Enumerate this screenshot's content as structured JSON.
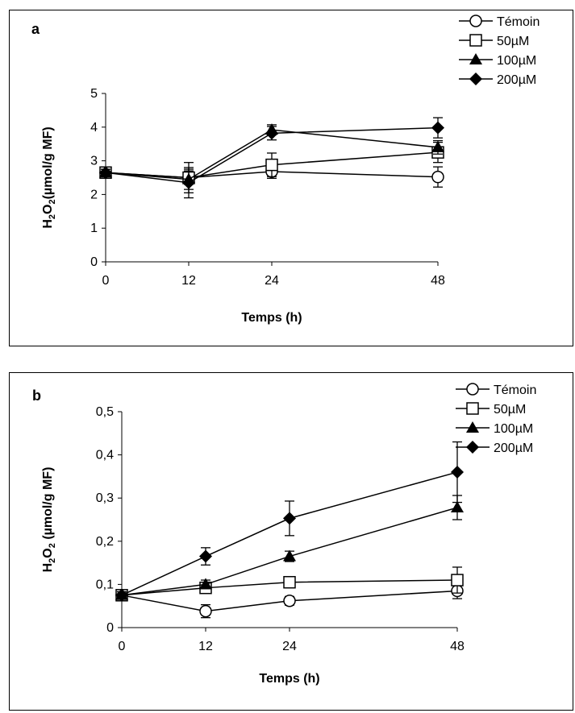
{
  "chart_data": [
    {
      "type": "line",
      "panel_label": "a",
      "xlabel": "Temps (h)",
      "ylabel": "H2O2(µmol/g MF)",
      "ylabel_parts": {
        "main": "H",
        "sub1": "2",
        "mid": "O",
        "sub2": "2",
        "rest": "(µmol/g MF)"
      },
      "x": [
        0,
        12,
        24,
        48
      ],
      "x_tick_labels": [
        "0",
        "12",
        "24",
        "48"
      ],
      "ylim": [
        0,
        5
      ],
      "y_ticks": [
        0,
        1,
        2,
        3,
        4,
        5
      ],
      "y_tick_labels": [
        "0",
        "1",
        "2",
        "3",
        "4",
        "5"
      ],
      "legend_position": "top-right",
      "series": [
        {
          "name": "Témoin",
          "marker": "circle-open",
          "values": [
            2.65,
            2.5,
            2.68,
            2.52
          ],
          "errors": [
            0.1,
            0.2,
            0.2,
            0.3
          ]
        },
        {
          "name": "50µM",
          "marker": "square-open",
          "values": [
            2.65,
            2.5,
            2.88,
            3.25
          ],
          "errors": [
            0.1,
            0.45,
            0.35,
            0.3
          ]
        },
        {
          "name": "100µM",
          "marker": "triangle-filled",
          "values": [
            2.65,
            2.45,
            3.92,
            3.4
          ],
          "errors": [
            0.1,
            0.3,
            0.15,
            0.2
          ]
        },
        {
          "name": "200µM",
          "marker": "diamond-filled",
          "values": [
            2.65,
            2.35,
            3.82,
            3.98
          ],
          "errors": [
            0.1,
            0.45,
            0.2,
            0.3
          ]
        }
      ]
    },
    {
      "type": "line",
      "panel_label": "b",
      "xlabel": "Temps (h)",
      "ylabel": "H2O2 (µmol/g MF)",
      "ylabel_parts": {
        "main": "H",
        "sub1": "2",
        "mid": "O",
        "sub2": "2",
        "rest": " (µmol/g MF)"
      },
      "x": [
        0,
        12,
        24,
        48
      ],
      "x_tick_labels": [
        "0",
        "12",
        "24",
        "48"
      ],
      "ylim": [
        0,
        0.5
      ],
      "y_ticks": [
        0,
        0.1,
        0.2,
        0.3,
        0.4,
        0.5
      ],
      "y_tick_labels": [
        "0",
        "0,1",
        "0,2",
        "0,3",
        "0,4",
        "0,5"
      ],
      "legend_position": "top-right",
      "series": [
        {
          "name": "Témoin",
          "marker": "circle-open",
          "values": [
            0.075,
            0.038,
            0.062,
            0.085
          ],
          "errors": [
            0.008,
            0.015,
            0.01,
            0.018
          ]
        },
        {
          "name": "50µM",
          "marker": "square-open",
          "values": [
            0.075,
            0.092,
            0.105,
            0.11
          ],
          "errors": [
            0.008,
            0.01,
            0.01,
            0.03
          ]
        },
        {
          "name": "100µM",
          "marker": "triangle-filled",
          "values": [
            0.075,
            0.1,
            0.165,
            0.278
          ],
          "errors": [
            0.008,
            0.01,
            0.012,
            0.028
          ]
        },
        {
          "name": "200µM",
          "marker": "diamond-filled",
          "values": [
            0.075,
            0.165,
            0.253,
            0.36
          ],
          "errors": [
            0.008,
            0.02,
            0.04,
            0.07
          ]
        }
      ]
    }
  ]
}
